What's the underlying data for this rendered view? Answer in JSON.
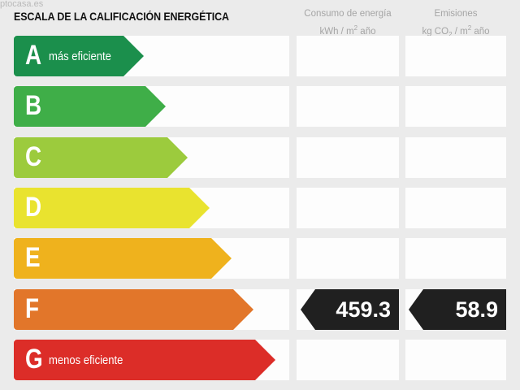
{
  "watermark": "ptocasa.es",
  "title": "ESCALA DE LA CALIFICACIÓN ENERGÉTICA",
  "columns": {
    "consumo": {
      "line1": "Consumo de energía",
      "line2_pre": "kWh / m",
      "line2_sup": "2",
      "line2_post": " año"
    },
    "emisiones": {
      "line1": "Emisiones",
      "line2_pre": "kg CO",
      "line2_sub": "2",
      "line2_mid": " / m",
      "line2_sup": "2",
      "line2_post": " año"
    }
  },
  "ratings": [
    {
      "letter": "A",
      "label": "más eficiente",
      "color": "#1b8f4c"
    },
    {
      "letter": "B",
      "label": "",
      "color": "#3fae48"
    },
    {
      "letter": "C",
      "label": "",
      "color": "#9ccb3d"
    },
    {
      "letter": "D",
      "label": "",
      "color": "#e9e32f"
    },
    {
      "letter": "E",
      "label": "",
      "color": "#efb21d"
    },
    {
      "letter": "F",
      "label": "",
      "color": "#e2762a"
    },
    {
      "letter": "G",
      "label": "menos eficiente",
      "color": "#dc2d28"
    }
  ],
  "result": {
    "rating": "F",
    "consumo": "459.3",
    "emisiones": "58.9"
  }
}
